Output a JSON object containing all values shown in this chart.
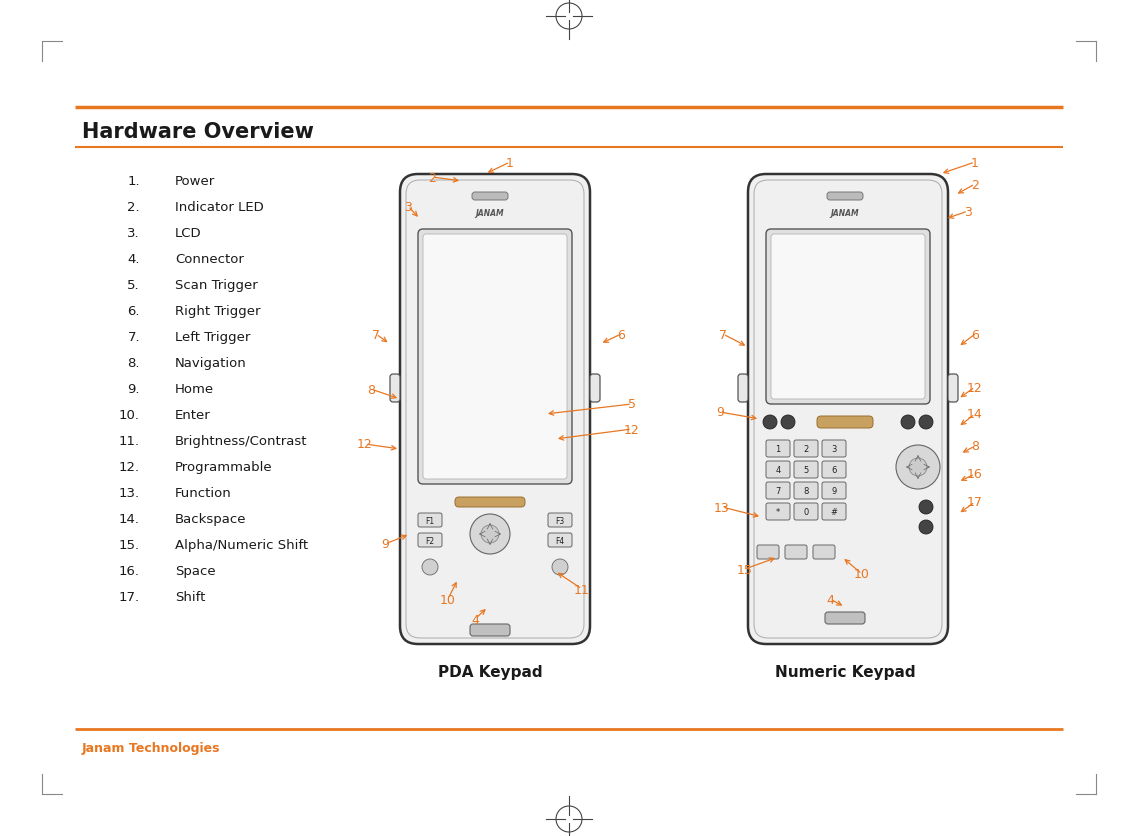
{
  "title": "Hardware Overview",
  "footer": "Janam Technologies",
  "orange": "#E87722",
  "dark_text": "#1a1a1a",
  "bg_color": "#ffffff",
  "list_items": [
    "Power",
    "Indicator LED",
    "LCD",
    "Connector",
    "Scan Trigger",
    "Right Trigger",
    "Left Trigger",
    "Navigation",
    "Home",
    "Enter",
    "Brightness/Contrast",
    "Programmable",
    "Function",
    "Backspace",
    "Alpha/Numeric Shift",
    "Space",
    "Shift"
  ],
  "pda_label": "PDA Keypad",
  "numeric_label": "Numeric Keypad"
}
